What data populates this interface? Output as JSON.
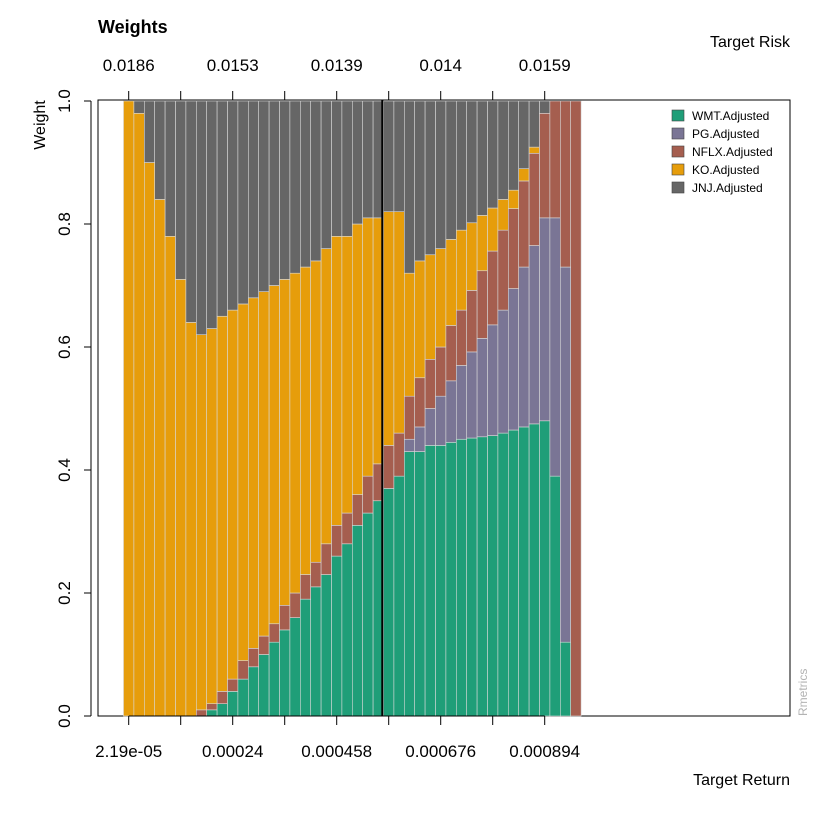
{
  "chart_data": {
    "type": "stacked-bar",
    "title": "Weights",
    "ylabel": "Weight",
    "xlabel": "Target Return",
    "top_axis_label": "Target Risk",
    "watermark": "Rmetrics",
    "ylim": [
      0,
      1
    ],
    "y_ticks": [
      "0.0",
      "0.2",
      "0.4",
      "0.6",
      "0.8",
      "1.0"
    ],
    "bottom_ticks": [
      {
        "index": 1,
        "label": "2.19e-05"
      },
      {
        "index": 11,
        "label": "0.00024"
      },
      {
        "index": 21,
        "label": "0.000458"
      },
      {
        "index": 31,
        "label": "0.000676"
      },
      {
        "index": 41,
        "label": "0.000894"
      }
    ],
    "top_ticks": [
      {
        "index": 1,
        "label": "0.0186"
      },
      {
        "index": 11,
        "label": "0.0153"
      },
      {
        "index": 21,
        "label": "0.0139"
      },
      {
        "index": 31,
        "label": "0.014"
      },
      {
        "index": 41,
        "label": "0.0159"
      }
    ],
    "minor_tick_indices": [
      6,
      16,
      26,
      36
    ],
    "bar_count": 50,
    "min_variance_index": 25,
    "legend": {
      "placement": "top-right"
    },
    "series": [
      {
        "name": "WMT.Adjusted",
        "color": "#1f9e78",
        "values": [
          0,
          0,
          0,
          0,
          0,
          0,
          0,
          0,
          0.01,
          0.02,
          0.04,
          0.06,
          0.08,
          0.1,
          0.12,
          0.14,
          0.16,
          0.19,
          0.21,
          0.23,
          0.26,
          0.28,
          0.31,
          0.33,
          0.35,
          0.37,
          0.39,
          0.43,
          0.43,
          0.44,
          0.44,
          0.445,
          0.45,
          0.452,
          0.454,
          0.456,
          0.46,
          0.465,
          0.47,
          0.475,
          0.48,
          0.39,
          0.12,
          0,
          0,
          0,
          0,
          0,
          0,
          0
        ]
      },
      {
        "name": "PG.Adjusted",
        "color": "#7a7595",
        "values": [
          0,
          0,
          0,
          0,
          0,
          0,
          0,
          0,
          0,
          0,
          0,
          0,
          0,
          0,
          0,
          0,
          0,
          0,
          0,
          0,
          0,
          0,
          0,
          0,
          0,
          0,
          0,
          0.02,
          0.04,
          0.06,
          0.08,
          0.1,
          0.12,
          0.14,
          0.16,
          0.18,
          0.2,
          0.23,
          0.26,
          0.29,
          0.33,
          0.42,
          0.61,
          0,
          0,
          0,
          0,
          0,
          0,
          0
        ]
      },
      {
        "name": "NFLX.Adjusted",
        "color": "#a55e4f",
        "values": [
          0,
          0,
          0,
          0,
          0,
          0,
          0,
          0.01,
          0.01,
          0.02,
          0.02,
          0.03,
          0.03,
          0.03,
          0.03,
          0.04,
          0.04,
          0.04,
          0.04,
          0.05,
          0.05,
          0.05,
          0.05,
          0.06,
          0.06,
          0.07,
          0.07,
          0.07,
          0.08,
          0.08,
          0.08,
          0.09,
          0.09,
          0.1,
          0.11,
          0.12,
          0.13,
          0.13,
          0.14,
          0.15,
          0.17,
          0.19,
          0.27,
          1.0,
          0,
          0,
          0,
          0,
          0,
          0
        ]
      },
      {
        "name": "KO.Adjusted",
        "color": "#e69d0b",
        "values": [
          1.0,
          0.98,
          0.9,
          0.84,
          0.78,
          0.71,
          0.64,
          0.61,
          0.61,
          0.61,
          0.6,
          0.58,
          0.57,
          0.56,
          0.55,
          0.53,
          0.52,
          0.5,
          0.49,
          0.48,
          0.47,
          0.45,
          0.44,
          0.42,
          0.4,
          0.38,
          0.36,
          0.2,
          0.19,
          0.17,
          0.16,
          0.14,
          0.13,
          0.11,
          0.09,
          0.07,
          0.05,
          0.03,
          0.02,
          0.01,
          0,
          0,
          0,
          0,
          0,
          0,
          0,
          0,
          0,
          0
        ]
      },
      {
        "name": "JNJ.Adjusted",
        "color": "#666666",
        "values": [
          0,
          0.02,
          0.1,
          0.16,
          0.22,
          0.29,
          0.36,
          0.38,
          0.37,
          0.37,
          0.36,
          0.35,
          0.34,
          0.33,
          0.32,
          0.31,
          0.3,
          0.29,
          0.28,
          0.27,
          0.26,
          0.25,
          0.24,
          0.23,
          0.22,
          0.21,
          0.2,
          0.3,
          0.29,
          0.28,
          0.27,
          0.255,
          0.24,
          0.22,
          0.2,
          0.18,
          0.17,
          0.15,
          0.12,
          0.09,
          0.02,
          0,
          0,
          0,
          0,
          0,
          0,
          0,
          0,
          0
        ]
      }
    ]
  }
}
